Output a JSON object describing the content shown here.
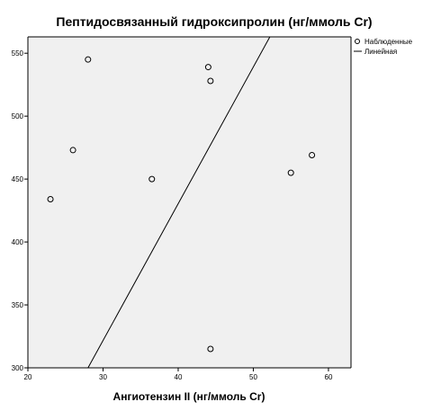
{
  "chart_data": {
    "type": "scatter",
    "title": "Пептидосвязанный гидроксипролин (нг/ммоль Cr)",
    "xlabel": "Ангиотензин II (нг/ммоль Cr)",
    "ylabel": "",
    "xlim": [
      20,
      63
    ],
    "ylim": [
      300,
      563
    ],
    "xticks": [
      20,
      30,
      40,
      50,
      60
    ],
    "yticks": [
      300,
      350,
      400,
      450,
      500,
      550
    ],
    "grid": false,
    "legend_position": "top-right",
    "legend": [
      {
        "label": "Наблюденные",
        "marker": "circle"
      },
      {
        "label": "Линейная",
        "marker": "line"
      }
    ],
    "series": [
      {
        "name": "Наблюденные",
        "type": "scatter",
        "points": [
          {
            "x": 23.0,
            "y": 434
          },
          {
            "x": 26.0,
            "y": 473
          },
          {
            "x": 28.0,
            "y": 545
          },
          {
            "x": 36.5,
            "y": 450
          },
          {
            "x": 44.0,
            "y": 539
          },
          {
            "x": 44.3,
            "y": 528
          },
          {
            "x": 44.3,
            "y": 315
          },
          {
            "x": 55.0,
            "y": 455
          },
          {
            "x": 57.8,
            "y": 469
          }
        ]
      },
      {
        "name": "Линейная",
        "type": "line",
        "points": [
          {
            "x": 28.0,
            "y": 300
          },
          {
            "x": 52.2,
            "y": 563
          }
        ]
      }
    ],
    "colors": {
      "plot_background": "#f0f0f0",
      "axis": "#000000",
      "marker_stroke": "#000000",
      "fit_line": "#000000"
    }
  }
}
